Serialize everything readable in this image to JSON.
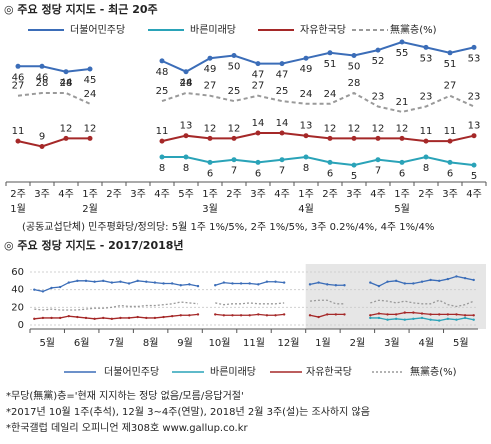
{
  "chart_data": [
    {
      "type": "line",
      "title": "◎ 주요 정당 지지도 - 최근 20주",
      "categories": [
        "2주",
        "3주",
        "4주",
        "1주",
        "2주",
        "3주",
        "4주",
        "5주",
        "1주",
        "2주",
        "3주",
        "4주",
        "1주",
        "2주",
        "3주",
        "4주",
        "1주",
        "2주",
        "3주",
        "4주"
      ],
      "month_labels": [
        "1월",
        null,
        null,
        "2월",
        null,
        null,
        null,
        null,
        "3월",
        null,
        null,
        null,
        "4월",
        null,
        null,
        null,
        "5월",
        null,
        null,
        null
      ],
      "series": [
        {
          "name": "더불어민주당",
          "color": "#3b6db8",
          "values": [
            46,
            46,
            44,
            45,
            null,
            null,
            48,
            44,
            49,
            50,
            47,
            47,
            49,
            51,
            50,
            52,
            55,
            53,
            51,
            53
          ]
        },
        {
          "name": "바른미래당",
          "color": "#2aa3b8",
          "values": [
            null,
            null,
            null,
            null,
            null,
            null,
            8,
            8,
            6,
            7,
            6,
            7,
            8,
            6,
            5,
            7,
            6,
            8,
            6,
            5
          ]
        },
        {
          "name": "자유한국당",
          "color": "#a52828",
          "values": [
            11,
            9,
            12,
            12,
            null,
            null,
            11,
            13,
            12,
            12,
            14,
            14,
            13,
            12,
            12,
            12,
            12,
            11,
            11,
            13
          ]
        },
        {
          "name": "無黨층(%)",
          "color": "#9a9a9a",
          "dashed": true,
          "values": [
            27,
            28,
            28,
            24,
            null,
            null,
            25,
            28,
            27,
            25,
            27,
            25,
            24,
            24,
            28,
            23,
            21,
            23,
            27,
            23
          ]
        }
      ],
      "note": "(공동교섭단체) 민주평화당/정의당: 5월 1주 1%/5%, 2주 1%/5%, 3주 0.2%/4%, 4주 1%/4%"
    },
    {
      "type": "line",
      "title": "◎ 주요 정당 지지도 - 2017/2018년",
      "categories": [
        "5월",
        null,
        null,
        null,
        "6월",
        null,
        null,
        null,
        "7월",
        null,
        null,
        null,
        "8월",
        null,
        null,
        null,
        "9월",
        null,
        null,
        null,
        "10월",
        null,
        null,
        null,
        "11월",
        null,
        null,
        null,
        "12월",
        null,
        null,
        null,
        "1월",
        null,
        null,
        null,
        "2월",
        null,
        null,
        null,
        "3월",
        null,
        null,
        null,
        "4월",
        null,
        null,
        null,
        "5월",
        null,
        null,
        null
      ],
      "ylim": [
        0,
        60
      ],
      "yticks": [
        0,
        20,
        40,
        60
      ],
      "grid": true,
      "series": [
        {
          "name": "더불어민주당",
          "color": "#3b6db8",
          "values": [
            40,
            38,
            42,
            43,
            48,
            50,
            50,
            49,
            50,
            48,
            49,
            47,
            50,
            49,
            48,
            47,
            47,
            45,
            46,
            44,
            null,
            45,
            48,
            47,
            47,
            47,
            46,
            49,
            49,
            48,
            null,
            null,
            46,
            48,
            46,
            45,
            45,
            null,
            null,
            48,
            44,
            49,
            50,
            47,
            47,
            49,
            51,
            50,
            52,
            55,
            53,
            51
          ]
        },
        {
          "name": "바른미래당",
          "color": "#2aa3b8",
          "values": [
            null,
            null,
            null,
            null,
            null,
            null,
            null,
            null,
            null,
            null,
            null,
            null,
            null,
            null,
            null,
            null,
            null,
            null,
            null,
            null,
            null,
            null,
            null,
            null,
            null,
            null,
            null,
            null,
            null,
            null,
            null,
            null,
            null,
            null,
            null,
            null,
            null,
            null,
            null,
            8,
            8,
            6,
            7,
            6,
            7,
            8,
            6,
            5,
            7,
            6,
            8,
            6
          ]
        },
        {
          "name": "자유한국당",
          "color": "#a52828",
          "values": [
            7,
            8,
            8,
            8,
            10,
            9,
            8,
            7,
            8,
            7,
            8,
            8,
            9,
            8,
            8,
            9,
            10,
            11,
            11,
            12,
            null,
            12,
            11,
            11,
            11,
            11,
            12,
            11,
            11,
            12,
            null,
            null,
            11,
            9,
            12,
            12,
            12,
            null,
            null,
            11,
            13,
            12,
            12,
            14,
            14,
            13,
            12,
            12,
            12,
            12,
            11,
            11
          ]
        },
        {
          "name": "無黨층(%)",
          "color": "#9a9a9a",
          "dashed": true,
          "values": [
            18,
            17,
            18,
            17,
            17,
            17,
            18,
            19,
            19,
            20,
            22,
            21,
            21,
            22,
            22,
            23,
            24,
            26,
            25,
            24,
            null,
            25,
            23,
            24,
            24,
            25,
            24,
            24,
            24,
            25,
            null,
            null,
            27,
            28,
            28,
            24,
            24,
            null,
            null,
            25,
            28,
            27,
            25,
            27,
            25,
            24,
            24,
            28,
            23,
            21,
            23,
            27
          ]
        }
      ],
      "notes": [
        "*무당(無黨)층='현재 지지하는 정당 없음/모름/응답거절'",
        "*2017년 10월 1주(추석), 12월 3~4주(연말), 2018년 2월 3주(설)는 조사하지 않음",
        "*한국갤럽 데일리 오피니언 제308호 www.gallup.co.kr"
      ]
    }
  ]
}
